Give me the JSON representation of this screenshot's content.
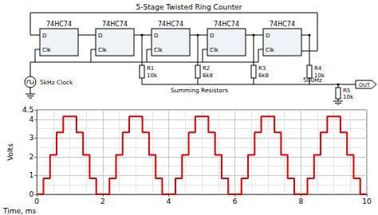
{
  "schematic": {
    "title": "5-Stage Twisted Ring Counter",
    "chips": [
      "74HC74",
      "74HC74",
      "74HC74",
      "74HC74",
      "74HC74"
    ],
    "pins": {
      "d": "D",
      "clk": "Clk"
    },
    "clock": "5kHz Clock",
    "resistors": [
      {
        "name": "R1",
        "value": "10k"
      },
      {
        "name": "R2",
        "value": "6k8"
      },
      {
        "name": "R3",
        "value": "6k8"
      },
      {
        "name": "R4",
        "value": "10k"
      },
      {
        "name": "R5",
        "value": "10k"
      }
    ],
    "bus_label": "Summing Resistors",
    "frequency": "500Hz",
    "output": "OUT"
  },
  "chart_data": {
    "type": "line",
    "line_style": "step",
    "color": "#e00000",
    "xlabel": "Time, ms",
    "ylabel": "Volts",
    "x": [
      0,
      0.2,
      0.4,
      0.6,
      0.8,
      1,
      1.2,
      1.4,
      1.6,
      1.8,
      2,
      2.2,
      2.4,
      2.6,
      2.8,
      3,
      3.2,
      3.4,
      3.6,
      3.8,
      4,
      4.2,
      4.4,
      4.6,
      4.8,
      5,
      5.2,
      5.4,
      5.6,
      5.8,
      6,
      6.2,
      6.4,
      6.6,
      6.8,
      7,
      7.2,
      7.4,
      7.6,
      7.8,
      8,
      8.2,
      8.4,
      8.6,
      8.8,
      9,
      9.2,
      9.4,
      9.6,
      9.8,
      10
    ],
    "values": [
      0,
      0.85,
      2.1,
      3.3,
      4.15,
      4.15,
      3.3,
      2.1,
      0.85,
      0,
      0,
      0.85,
      2.1,
      3.3,
      4.15,
      4.15,
      3.3,
      2.1,
      0.85,
      0,
      0,
      0.85,
      2.1,
      3.3,
      4.15,
      4.15,
      3.3,
      2.1,
      0.85,
      0,
      0,
      0.85,
      2.1,
      3.3,
      4.15,
      4.15,
      3.3,
      2.1,
      0.85,
      0,
      0,
      0.85,
      2.1,
      3.3,
      4.15,
      4.15,
      3.3,
      2.1,
      0.85,
      0,
      0
    ],
    "xlim": [
      0,
      10
    ],
    "xticks": [
      0,
      2,
      4,
      6,
      8,
      10
    ],
    "ylim": [
      0,
      4.5
    ],
    "yticks": [
      0,
      1,
      2,
      3,
      4
    ],
    "grid": true
  }
}
